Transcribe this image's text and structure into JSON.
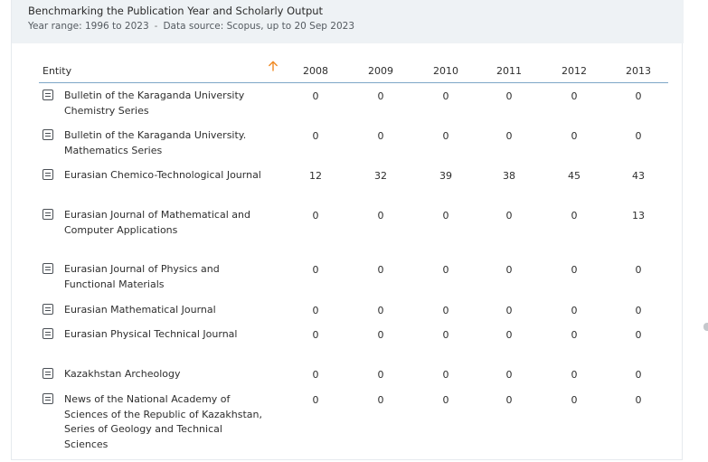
{
  "header": {
    "title": "Benchmarking the Publication Year and Scholarly Output",
    "year_range": "Year range: 1996 to 2023",
    "separator": "-",
    "data_source": "Data source: Scopus, up to 20 Sep 2023"
  },
  "table": {
    "entity_header": "Entity",
    "sort_icon": "arrow-up-icon",
    "sort_color": "#f08a24",
    "years": [
      "2008",
      "2009",
      "2010",
      "2011",
      "2012",
      "2013"
    ],
    "rows": [
      {
        "name": "Bulletin of the Karaganda University Chemistry Series",
        "values": [
          "0",
          "0",
          "0",
          "0",
          "0",
          "0"
        ]
      },
      {
        "name": "Bulletin of the Karaganda University. Mathematics Series",
        "values": [
          "0",
          "0",
          "0",
          "0",
          "0",
          "0"
        ]
      },
      {
        "name": "Eurasian Chemico-Technological Journal",
        "values": [
          "12",
          "32",
          "39",
          "38",
          "45",
          "43"
        ]
      },
      {
        "name": "Eurasian Journal of Mathematical and Computer Applications",
        "values": [
          "0",
          "0",
          "0",
          "0",
          "0",
          "13"
        ]
      },
      {
        "name": "Eurasian Journal of Physics and Functional Materials",
        "values": [
          "0",
          "0",
          "0",
          "0",
          "0",
          "0"
        ]
      },
      {
        "name": "Eurasian Mathematical Journal",
        "values": [
          "0",
          "0",
          "0",
          "0",
          "0",
          "0"
        ]
      },
      {
        "name": "Eurasian Physical Technical Journal",
        "values": [
          "0",
          "0",
          "0",
          "0",
          "0",
          "0"
        ]
      },
      {
        "name": "Kazakhstan Archeology",
        "values": [
          "0",
          "0",
          "0",
          "0",
          "0",
          "0"
        ]
      },
      {
        "name": "News of the National Academy of Sciences of the Republic of Kazakhstan, Series of Geology and Technical Sciences",
        "values": [
          "0",
          "0",
          "0",
          "0",
          "0",
          "0"
        ]
      }
    ]
  },
  "colors": {
    "header_bg": "#eef2f5",
    "rule": "#7ea7c7"
  }
}
